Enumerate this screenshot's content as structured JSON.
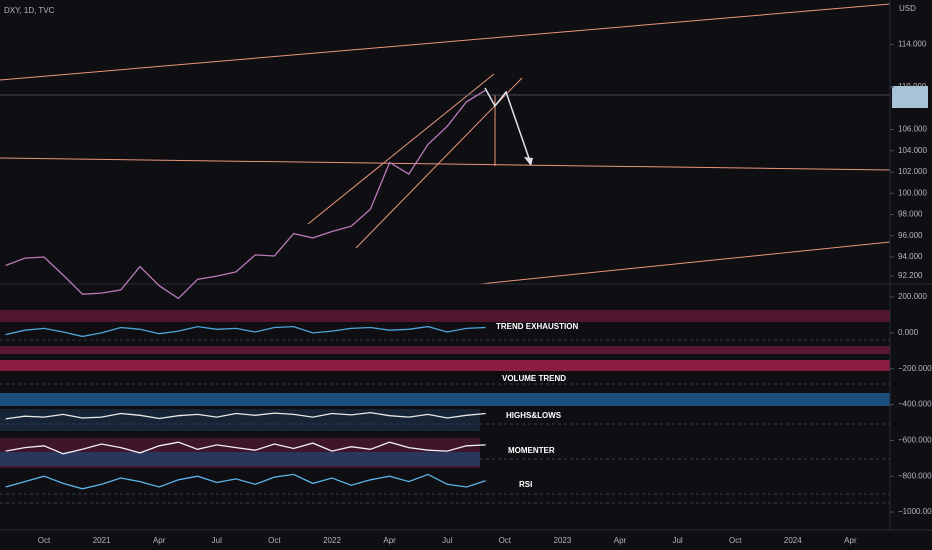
{
  "chart_data": [
    {
      "type": "line",
      "title": "DXY, 1D, TVC",
      "y_label": "USD",
      "color": "#b97ab8",
      "x": [
        "2020-08",
        "2020-09",
        "2020-10",
        "2020-11",
        "2020-12",
        "2021-01",
        "2021-02",
        "2021-03",
        "2021-04",
        "2021-05",
        "2021-06",
        "2021-07",
        "2021-08",
        "2021-09",
        "2021-10",
        "2021-11",
        "2021-12",
        "2022-01",
        "2022-02",
        "2022-03",
        "2022-04",
        "2022-05",
        "2022-06",
        "2022-07",
        "2022-08",
        "2022-09"
      ],
      "values": [
        93.2,
        93.9,
        94.0,
        92.3,
        90.5,
        90.6,
        90.9,
        93.1,
        91.3,
        90.1,
        91.9,
        92.2,
        92.6,
        94.2,
        94.1,
        96.2,
        95.8,
        96.4,
        96.9,
        98.5,
        102.9,
        101.8,
        104.6,
        106.3,
        108.6,
        109.7
      ],
      "ylim": [
        91.46,
        118.19
      ],
      "yticks": [
        {
          "value": 114,
          "label": "114.000"
        },
        {
          "value": 110,
          "label": "110.000"
        },
        {
          "value": 106,
          "label": "106.000"
        },
        {
          "value": 104,
          "label": "104.000"
        },
        {
          "value": 102,
          "label": "102.000"
        },
        {
          "value": 100,
          "label": "100.000"
        },
        {
          "value": 98,
          "label": "98.000"
        },
        {
          "value": 96,
          "label": "96.000"
        },
        {
          "value": 94,
          "label": "94.000"
        },
        {
          "value": 92.2,
          "label": "92.200"
        }
      ]
    },
    {
      "type": "line",
      "x": [
        "2020-08",
        "2020-09",
        "2020-10",
        "2020-11",
        "2020-12",
        "2021-01",
        "2021-02",
        "2021-03",
        "2021-04",
        "2021-05",
        "2021-06",
        "2021-07",
        "2021-08",
        "2021-09",
        "2021-10",
        "2021-11",
        "2021-12",
        "2022-01",
        "2022-02",
        "2022-03",
        "2022-04",
        "2022-05",
        "2022-06",
        "2022-07",
        "2022-08",
        "2022-09"
      ],
      "series": [
        {
          "name": "TREND EXHAUSTION",
          "color": "#4ea3d9",
          "values": [
            -10,
            15,
            25,
            5,
            -20,
            0,
            30,
            20,
            -5,
            10,
            35,
            20,
            25,
            5,
            30,
            35,
            0,
            10,
            25,
            30,
            15,
            20,
            35,
            5,
            25,
            30
          ]
        },
        {
          "name": "HIGHS&LOWS",
          "color": "#e8e8e8",
          "values": [
            -480,
            -465,
            -470,
            -455,
            -475,
            -470,
            -450,
            -460,
            -478,
            -462,
            -455,
            -470,
            -450,
            -460,
            -448,
            -455,
            -470,
            -450,
            -458,
            -445,
            -462,
            -470,
            -455,
            -475,
            -460,
            -450
          ]
        },
        {
          "name": "MOMENTER",
          "color": "#f0f0f0",
          "values": [
            -660,
            -640,
            -630,
            -675,
            -650,
            -620,
            -640,
            -670,
            -630,
            -610,
            -650,
            -625,
            -640,
            -655,
            -620,
            -645,
            -615,
            -660,
            -635,
            -650,
            -610,
            -640,
            -655,
            -660,
            -630,
            -625
          ]
        },
        {
          "name": "RSI",
          "color": "#5bb5e8",
          "values": [
            -860,
            -830,
            -800,
            -840,
            -870,
            -845,
            -810,
            -830,
            -860,
            -820,
            -800,
            -835,
            -815,
            -845,
            -805,
            -790,
            -840,
            -810,
            -850,
            -820,
            -800,
            -830,
            -790,
            -845,
            -860,
            -825
          ]
        }
      ],
      "annotations": [
        "VOLUME TREND"
      ],
      "ylim": [
        -1100,
        267
      ],
      "yticks": [
        {
          "value": 200,
          "label": "200.000"
        },
        {
          "value": 0,
          "label": "0.000"
        },
        {
          "value": -200,
          "label": "−200.000"
        },
        {
          "value": -400,
          "label": "−400.000"
        },
        {
          "value": -600,
          "label": "−600.000"
        },
        {
          "value": -800,
          "label": "−800.000"
        },
        {
          "value": -1000,
          "label": "−1000.000"
        }
      ],
      "xtick_labels": [
        "Oct",
        "2021",
        "Apr",
        "Jul",
        "Oct",
        "2022",
        "Apr",
        "Jul",
        "Oct",
        "2023",
        "Apr",
        "Jul",
        "Oct",
        "2024",
        "Apr"
      ]
    }
  ]
}
